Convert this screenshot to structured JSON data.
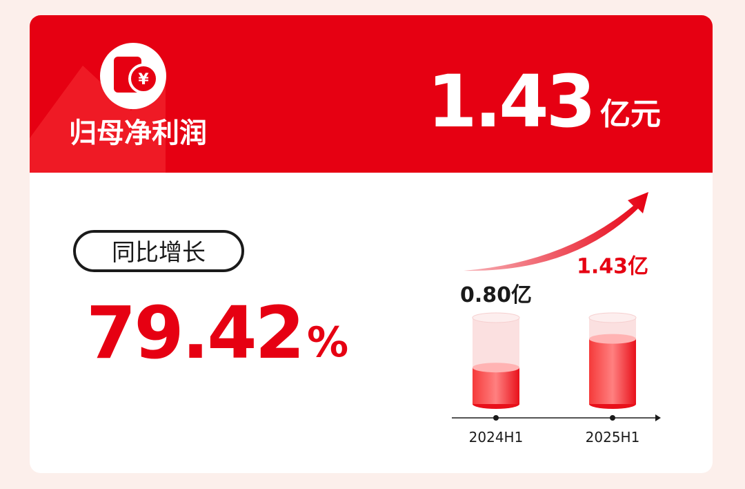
{
  "header": {
    "title": "归母净利润",
    "value": "1.43",
    "unit": "亿元"
  },
  "growth": {
    "label": "同比增长",
    "value": "79.42",
    "unit": "%"
  },
  "chart_data": {
    "type": "bar",
    "categories": [
      "2024H1",
      "2025H1"
    ],
    "values": [
      0.8,
      1.43
    ],
    "value_labels": [
      "0.80亿",
      "1.43亿"
    ],
    "colors": [
      "#1a1a1a",
      "#e60012"
    ],
    "color": "#e60012"
  }
}
